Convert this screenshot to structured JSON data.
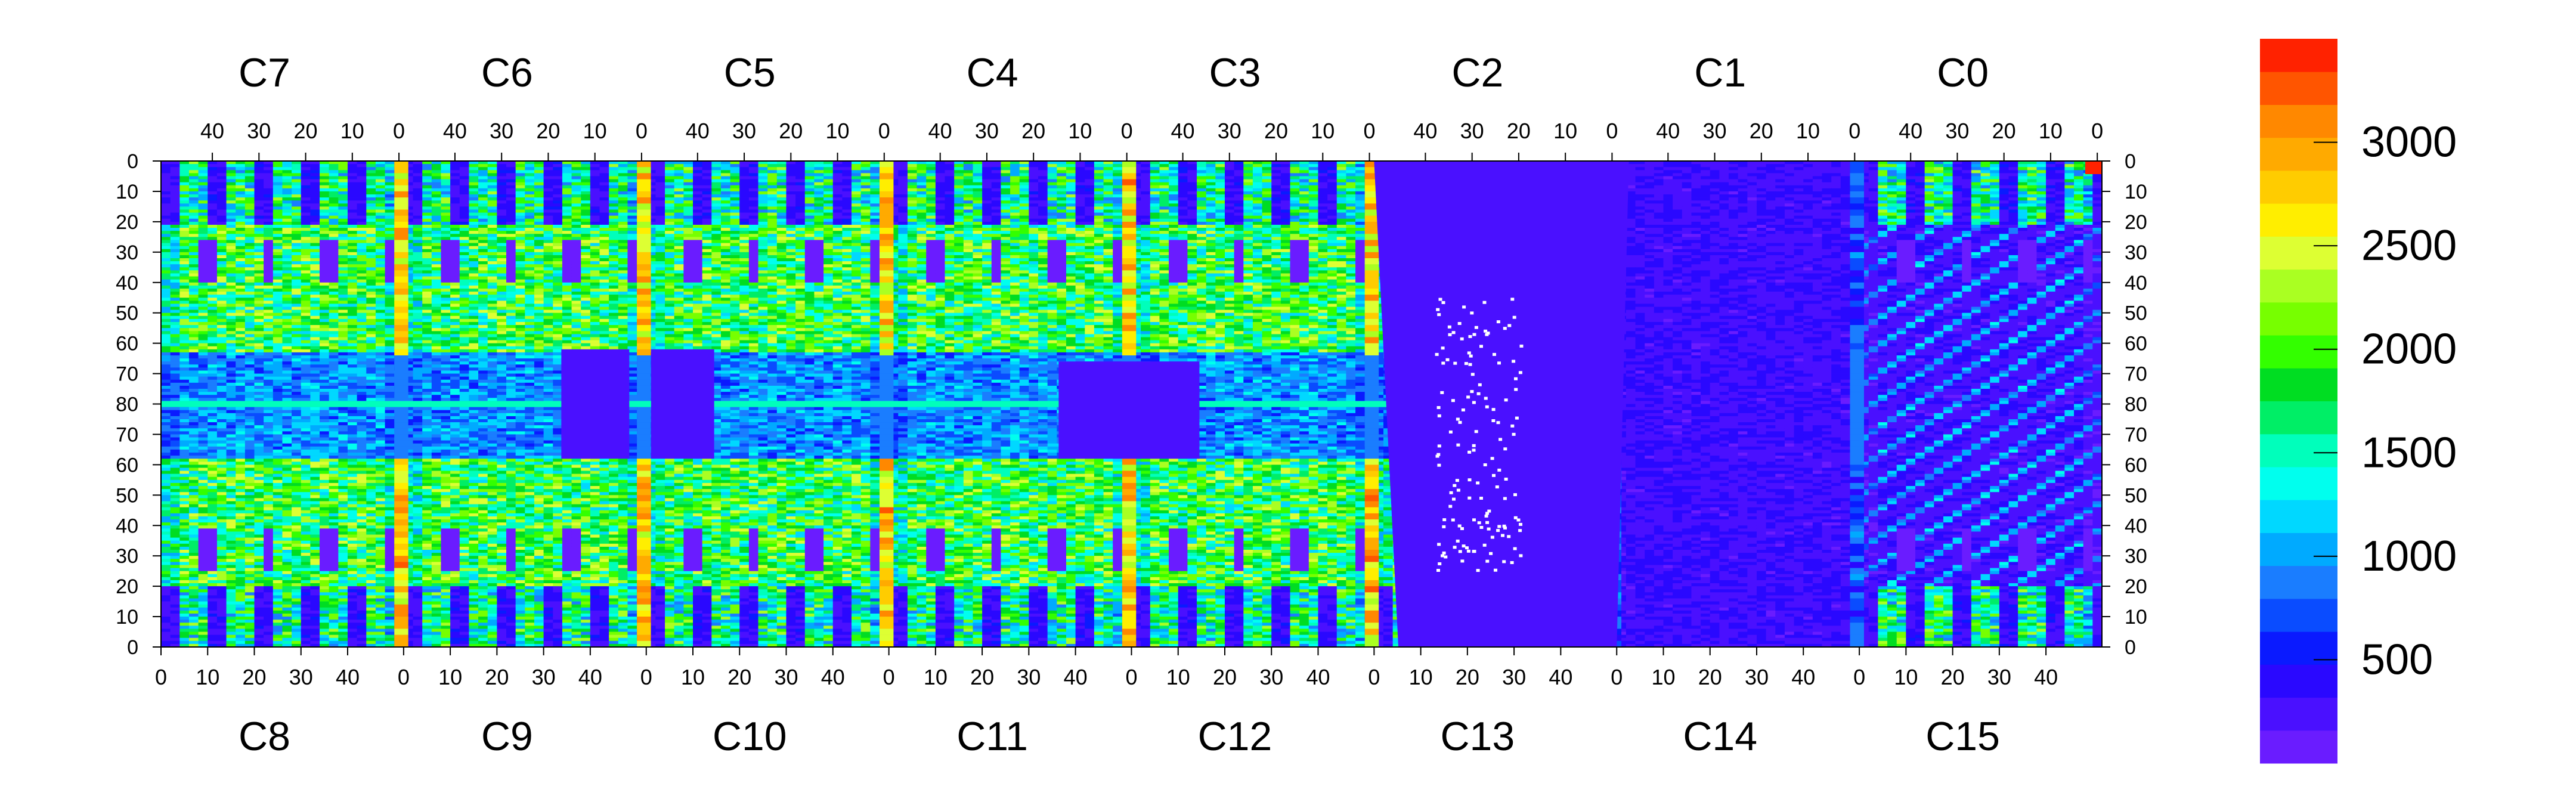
{
  "chart_data": {
    "type": "heatmap",
    "title": "",
    "xlabel": "",
    "ylabel": "",
    "top_chip_labels": [
      "C7",
      "C6",
      "C5",
      "C4",
      "C3",
      "C2",
      "C1",
      "C0"
    ],
    "bottom_chip_labels": [
      "C8",
      "C9",
      "C10",
      "C11",
      "C12",
      "C13",
      "C14",
      "C15"
    ],
    "top_chip_ticks": [
      {
        "labels": [
          "40",
          "30",
          "20",
          "10",
          "0"
        ],
        "values": [
          40,
          30,
          20,
          10,
          0
        ]
      }
    ],
    "bottom_chip_ticks": [
      {
        "labels": [
          "0",
          "10",
          "20",
          "30",
          "40"
        ],
        "values": [
          0,
          10,
          20,
          30,
          40
        ]
      }
    ],
    "y_tick_labels": [
      "0",
      "10",
      "20",
      "30",
      "40",
      "50",
      "60",
      "70",
      "80",
      "70",
      "60",
      "50",
      "40",
      "30",
      "20",
      "10",
      "0"
    ],
    "columns_per_chip": 52,
    "rows": 160,
    "colorbar": {
      "range": [
        0,
        3500
      ],
      "tick_labels": [
        "500",
        "1000",
        "1500",
        "2000",
        "2500",
        "3000"
      ],
      "tick_values": [
        500,
        1000,
        1500,
        2000,
        2500,
        3000
      ],
      "levels": [
        "#6a1cff",
        "#4a10ff",
        "#2a08ff",
        "#0a1aff",
        "#0a4cff",
        "#1a7dff",
        "#00aaff",
        "#00d8ff",
        "#00ffee",
        "#00ffbb",
        "#00ee66",
        "#00dd22",
        "#33ff00",
        "#77ff00",
        "#aaff22",
        "#ddff33",
        "#ffee00",
        "#ffcc00",
        "#ffaa00",
        "#ff8800",
        "#ff5500",
        "#ff2200"
      ]
    },
    "features": {
      "background_value": 120,
      "column_hot_value": 3200,
      "row_80_value": 1500,
      "hot_corner_value": 3400
    }
  }
}
